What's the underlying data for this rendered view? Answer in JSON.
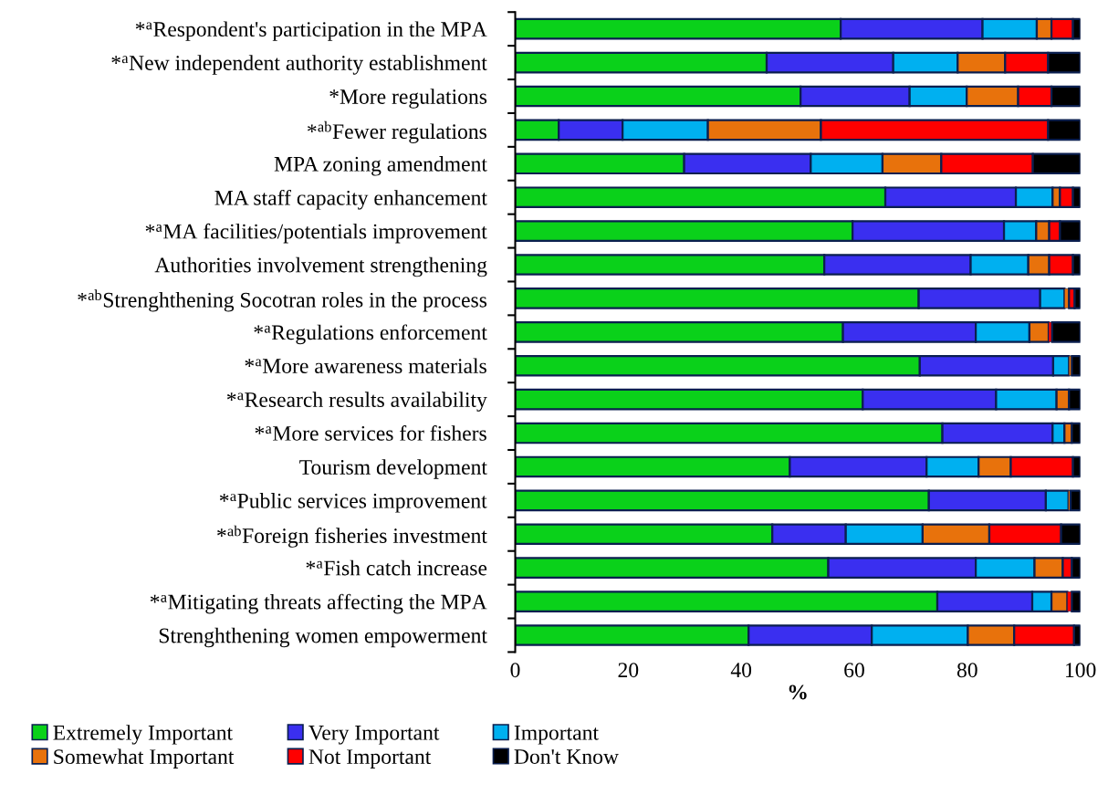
{
  "chart_data": {
    "type": "bar",
    "orientation": "horizontal",
    "stacked": true,
    "xlabel": "%",
    "xlim": [
      0,
      100
    ],
    "xticks": [
      0,
      20,
      40,
      60,
      80,
      100
    ],
    "grid": false,
    "legend": "bottom",
    "categories": [
      "*$^{a}$Respondent's participation in the MPA",
      "*$^{a}$New independent authority establishment",
      "*More regulations",
      "*$^{ab}$Fewer regulations",
      "MPA zoning amendment",
      "MA staff capacity enhancement",
      "*$^{a}$MA facilities/potentials improvement",
      "Authorities involvement strengthening",
      "*$^{ab}$Strenghthening Socotran roles in the process",
      "*$^{a}$Regulations enforcement",
      "*$^{a}$More awareness materials",
      "*$^{a}$Research results availability",
      "*$^{a}$More services for fishers",
      "Tourism development",
      "*$^{a}$Public services improvement",
      "*$^{ab}$Foreign fisheries investment",
      "*$^{a}$Fish catch increase",
      "*$^{a}$Mitigating threats affecting the MPA",
      "Strenghthening women empowerment"
    ],
    "series": [
      {
        "name": "Extremely Important",
        "color": "#0ad11a",
        "values": [
          57.6,
          44.5,
          50.5,
          7.7,
          29.9,
          65.5,
          59.7,
          54.7,
          71.4,
          58.0,
          71.6,
          61.5,
          75.6,
          48.6,
          73.2,
          45.5,
          55.4,
          74.7,
          41.3
        ]
      },
      {
        "name": "Very Important",
        "color": "#3a2ff0",
        "values": [
          25.1,
          22.4,
          19.3,
          11.3,
          22.4,
          23.1,
          26.8,
          25.9,
          21.5,
          23.5,
          23.6,
          23.6,
          19.5,
          24.2,
          20.7,
          13.0,
          26.1,
          16.8,
          21.8
        ]
      },
      {
        "name": "Important",
        "color": "#00b0f0",
        "values": [
          9.6,
          11.4,
          10.1,
          15.1,
          12.7,
          6.5,
          5.7,
          10.2,
          4.3,
          9.5,
          2.8,
          10.7,
          2.1,
          9.2,
          4.0,
          13.6,
          10.4,
          3.4,
          17.0
        ]
      },
      {
        "name": "Somewhat Important",
        "color": "#e8720c",
        "values": [
          2.6,
          8.4,
          9.1,
          20.0,
          10.4,
          1.3,
          2.3,
          3.7,
          0.8,
          3.4,
          0.5,
          2.2,
          1.3,
          5.7,
          0.4,
          11.8,
          5.0,
          2.8,
          8.2
        ]
      },
      {
        "name": "Not Important",
        "color": "#ff0000",
        "values": [
          3.8,
          7.6,
          5.9,
          40.2,
          16.2,
          2.3,
          1.9,
          4.2,
          1.0,
          0.6,
          0,
          0,
          0,
          11.0,
          0,
          12.7,
          1.6,
          0.8,
          10.6
        ]
      },
      {
        "name": "Don't Know",
        "color": "#000000",
        "values": [
          1.3,
          5.7,
          5.1,
          5.7,
          8.4,
          1.3,
          3.6,
          1.3,
          1.0,
          5.0,
          1.5,
          2.0,
          1.5,
          1.3,
          1.7,
          3.4,
          1.5,
          1.5,
          1.1
        ]
      }
    ]
  }
}
